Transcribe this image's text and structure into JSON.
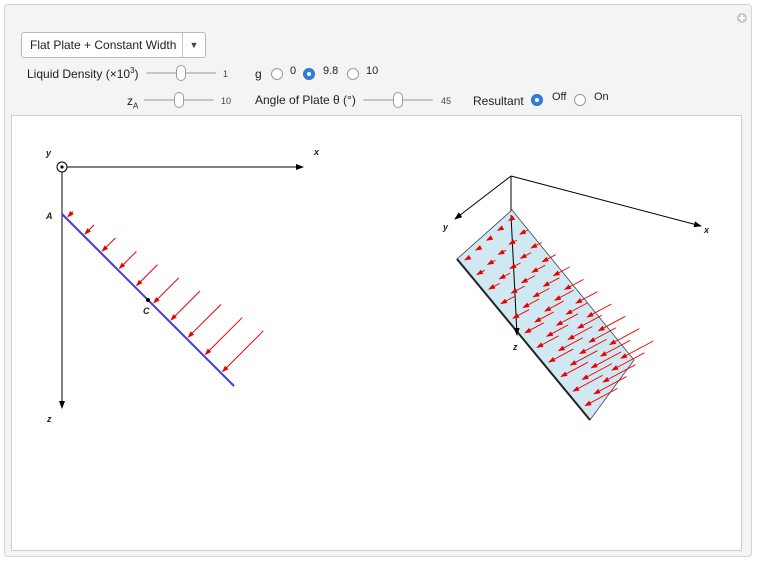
{
  "dropdown": {
    "value": "Flat Plate + Constant Width"
  },
  "controls": {
    "density": {
      "label": "Liquid Density (×10",
      "exp": "3",
      "close": ")",
      "value": "1",
      "fraction": 0.5
    },
    "za": {
      "label": "z",
      "sub": "A",
      "value": "10",
      "fraction": 0.5
    },
    "angle": {
      "label": "Angle of Plate θ (°)",
      "value": "45",
      "fraction": 0.5
    },
    "g": {
      "label": "g",
      "options": [
        "0",
        "9.8",
        "10"
      ],
      "selected": "9.8"
    },
    "resultant": {
      "label": "Resultant",
      "options": [
        "Off",
        "On"
      ],
      "selected": "Off"
    }
  },
  "diagram2d": {
    "y_label": "y",
    "x_label": "x",
    "z_label": "z",
    "point_a": "A",
    "point_c": "C"
  },
  "diagram3d": {
    "y_label": "y",
    "x_label": "x",
    "z_label": "z"
  },
  "colors": {
    "plate_line": "#3a3aee",
    "arrows": "#ee0000",
    "plate_fill": "#cfe8f2",
    "selected_radio": "#2f7fe0"
  }
}
